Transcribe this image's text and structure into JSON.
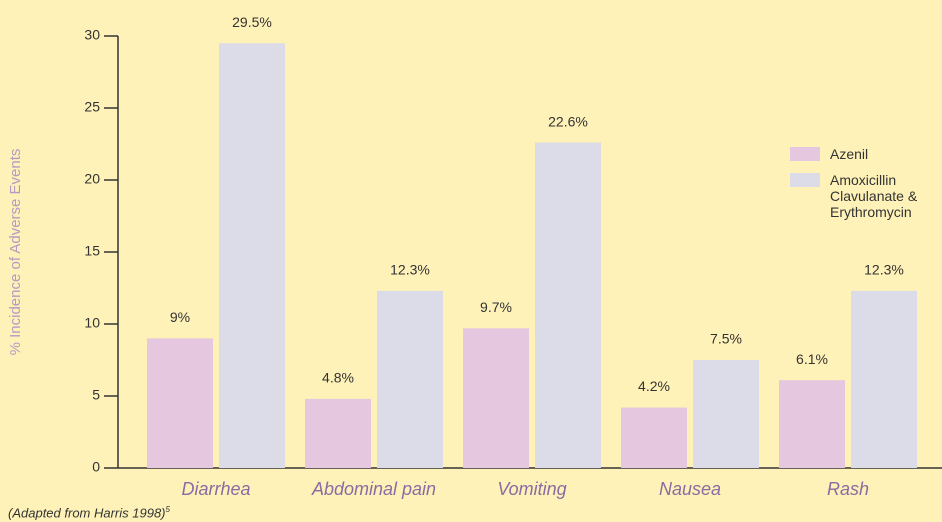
{
  "chart_data": {
    "type": "bar",
    "y_label": "% Incidence of Adverse Events",
    "categories": [
      "Diarrhea",
      "Abdominal pain",
      "Vomiting",
      "Nausea",
      "Rash"
    ],
    "series": [
      {
        "name": "Azenil",
        "color": "#e6c7e0",
        "values": [
          9,
          4.8,
          9.7,
          4.2,
          6.1
        ],
        "value_labels": [
          "9%",
          "4.8%",
          "9.7%",
          "4.2%",
          "6.1%"
        ]
      },
      {
        "name": "Amoxicillin Clavulanate & Erythromycin",
        "color": "#dcdce8",
        "values": [
          29.5,
          12.3,
          22.6,
          7.5,
          12.3
        ],
        "value_labels": [
          "29.5%",
          "12.3%",
          "22.6%",
          "7.5%",
          "12.3%"
        ]
      }
    ],
    "ylim": [
      0,
      30
    ],
    "yticks": [
      0,
      5,
      10,
      15,
      20,
      25,
      30
    ],
    "footnote": "(Adapted from Harris 1998)",
    "footnote_ref": "5"
  }
}
